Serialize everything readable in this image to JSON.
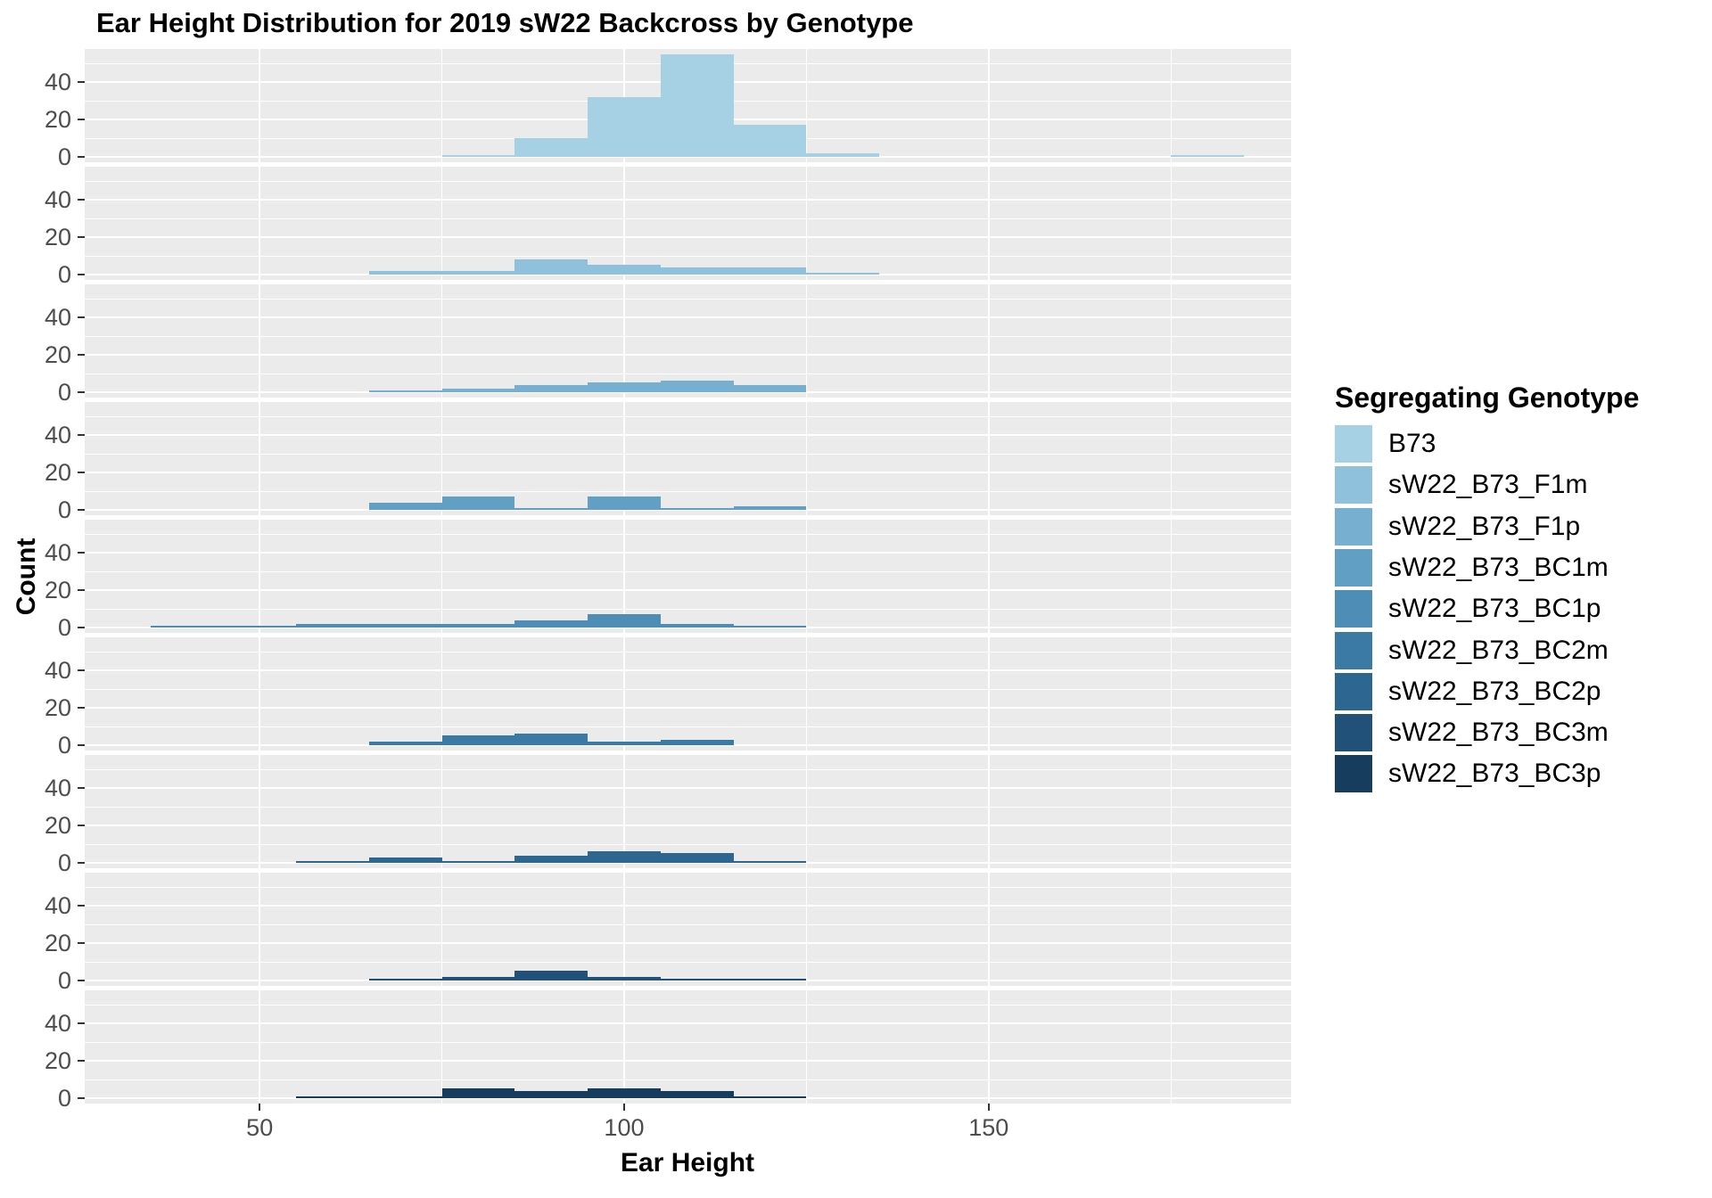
{
  "title": "Ear Height Distribution for 2019 sW22 Backcross by Genotype",
  "axes": {
    "x_label": "Ear Height",
    "y_label": "Count",
    "x_tick_labels": [
      "50",
      "100",
      "150"
    ],
    "y_tick_labels": [
      "0",
      "20",
      "40"
    ]
  },
  "legend": {
    "title": "Segregating Genotype",
    "entries": [
      {
        "label": "B73",
        "color": "#A6D0E4"
      },
      {
        "label": "sW22_B73_F1m",
        "color": "#8FC1DC"
      },
      {
        "label": "sW22_B73_F1p",
        "color": "#76AFD0"
      },
      {
        "label": "sW22_B73_BC1m",
        "color": "#619FC4"
      },
      {
        "label": "sW22_B73_BC1p",
        "color": "#4D8DB6"
      },
      {
        "label": "sW22_B73_BC2m",
        "color": "#3B7AA5"
      },
      {
        "label": "sW22_B73_BC2p",
        "color": "#2D6691"
      },
      {
        "label": "sW22_B73_BC3m",
        "color": "#215179"
      },
      {
        "label": "sW22_B73_BC3p",
        "color": "#173D5E"
      }
    ]
  },
  "theme": {
    "panel_background": "#EBEBEB",
    "gridline_color": "#FFFFFF",
    "tick_text_color": "#4D4D4D",
    "tick_mark_color": "#333333",
    "text_color": "#000000"
  },
  "chart_data": {
    "type": "bar",
    "subtype": "faceted-histogram",
    "title": "Ear Height Distribution for 2019 sW22 Backcross by Genotype",
    "xlabel": "Ear Height",
    "ylabel": "Count",
    "binwidth": 10,
    "xlim": [
      26,
      191.5
    ],
    "ylim_per_facet": [
      -2.9,
      57.8
    ],
    "x_major_ticks": [
      50,
      100,
      150
    ],
    "x_minor_gridlines": [
      75,
      125,
      175
    ],
    "y_major_ticks": [
      0,
      20,
      40
    ],
    "y_minor_gridlines": [
      10,
      30,
      50
    ],
    "grid": "on",
    "legend_position": "right",
    "facets": [
      {
        "genotype": "B73",
        "color": "#A6D0E4",
        "bins": [
          [
            75,
            1
          ],
          [
            85,
            10
          ],
          [
            95,
            32
          ],
          [
            105,
            55
          ],
          [
            115,
            17
          ],
          [
            125,
            2
          ],
          [
            175,
            1
          ]
        ]
      },
      {
        "genotype": "sW22_B73_F1m",
        "color": "#8FC1DC",
        "bins": [
          [
            65,
            2
          ],
          [
            75,
            2
          ],
          [
            85,
            8
          ],
          [
            95,
            5
          ],
          [
            105,
            4
          ],
          [
            115,
            4
          ],
          [
            125,
            1
          ]
        ]
      },
      {
        "genotype": "sW22_B73_F1p",
        "color": "#76AFD0",
        "bins": [
          [
            65,
            1
          ],
          [
            75,
            2
          ],
          [
            85,
            4
          ],
          [
            95,
            5
          ],
          [
            105,
            6
          ],
          [
            115,
            4
          ]
        ]
      },
      {
        "genotype": "sW22_B73_BC1m",
        "color": "#619FC4",
        "bins": [
          [
            65,
            4
          ],
          [
            75,
            7
          ],
          [
            85,
            1
          ],
          [
            95,
            7
          ],
          [
            105,
            1
          ],
          [
            115,
            2
          ]
        ]
      },
      {
        "genotype": "sW22_B73_BC1p",
        "color": "#4D8DB6",
        "bins": [
          [
            35,
            1
          ],
          [
            45,
            1
          ],
          [
            55,
            2
          ],
          [
            65,
            2
          ],
          [
            75,
            2
          ],
          [
            85,
            4
          ],
          [
            95,
            7
          ],
          [
            105,
            2
          ],
          [
            115,
            1
          ]
        ]
      },
      {
        "genotype": "sW22_B73_BC2m",
        "color": "#3B7AA5",
        "bins": [
          [
            65,
            2
          ],
          [
            75,
            5
          ],
          [
            85,
            6
          ],
          [
            95,
            2
          ],
          [
            105,
            3
          ]
        ]
      },
      {
        "genotype": "sW22_B73_BC2p",
        "color": "#2D6691",
        "bins": [
          [
            55,
            1
          ],
          [
            65,
            3
          ],
          [
            75,
            1
          ],
          [
            85,
            4
          ],
          [
            95,
            6
          ],
          [
            105,
            5
          ],
          [
            115,
            1
          ]
        ]
      },
      {
        "genotype": "sW22_B73_BC3m",
        "color": "#215179",
        "bins": [
          [
            65,
            1
          ],
          [
            75,
            2
          ],
          [
            85,
            5
          ],
          [
            95,
            2
          ],
          [
            105,
            1
          ],
          [
            115,
            1
          ]
        ]
      },
      {
        "genotype": "sW22_B73_BC3p",
        "color": "#173D5E",
        "bins": [
          [
            55,
            1
          ],
          [
            65,
            1
          ],
          [
            75,
            5
          ],
          [
            85,
            4
          ],
          [
            95,
            5
          ],
          [
            105,
            4
          ],
          [
            115,
            1
          ]
        ]
      }
    ]
  }
}
